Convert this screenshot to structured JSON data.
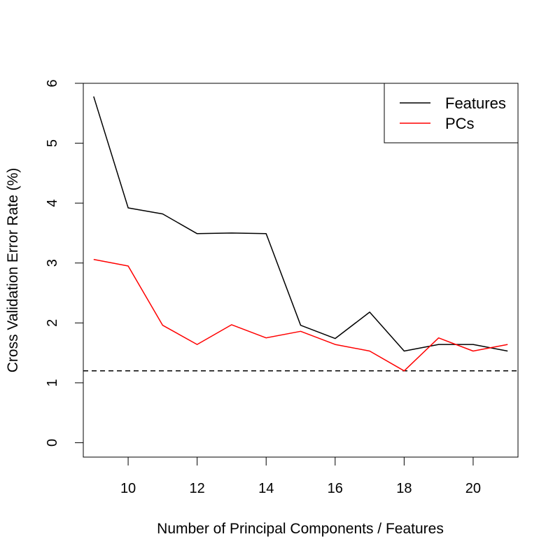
{
  "chart_data": {
    "type": "line",
    "title": "",
    "xlabel": "Number of Principal Components / Features",
    "ylabel": "Cross Validation Error Rate (%)",
    "xlim": [
      8.7,
      21.3
    ],
    "ylim": [
      -0.24,
      6.0
    ],
    "x_ticks": [
      10,
      12,
      14,
      16,
      18,
      20
    ],
    "x_tick_labels": [
      "10",
      "12",
      "14",
      "16",
      "18",
      "20"
    ],
    "y_ticks": [
      0,
      1,
      2,
      3,
      4,
      5,
      6
    ],
    "y_tick_labels": [
      "0",
      "1",
      "2",
      "3",
      "4",
      "5",
      "6"
    ],
    "x": [
      9,
      10,
      11,
      12,
      13,
      14,
      15,
      16,
      17,
      18,
      19,
      20,
      21
    ],
    "series": [
      {
        "name": "Features",
        "color": "#000000",
        "values": [
          5.78,
          3.92,
          3.82,
          3.49,
          3.5,
          3.49,
          1.96,
          1.74,
          2.18,
          1.53,
          1.64,
          1.64,
          1.53
        ]
      },
      {
        "name": "PCs",
        "color": "#ff0000",
        "values": [
          3.06,
          2.95,
          1.96,
          1.64,
          1.97,
          1.75,
          1.86,
          1.64,
          1.53,
          1.2,
          1.75,
          1.53,
          1.64
        ]
      }
    ],
    "reference_line": {
      "y": 1.2,
      "style": "dashed",
      "color": "#000000"
    },
    "legend": {
      "position": "top-right",
      "entries": [
        "Features",
        "PCs"
      ]
    },
    "grid": false
  }
}
